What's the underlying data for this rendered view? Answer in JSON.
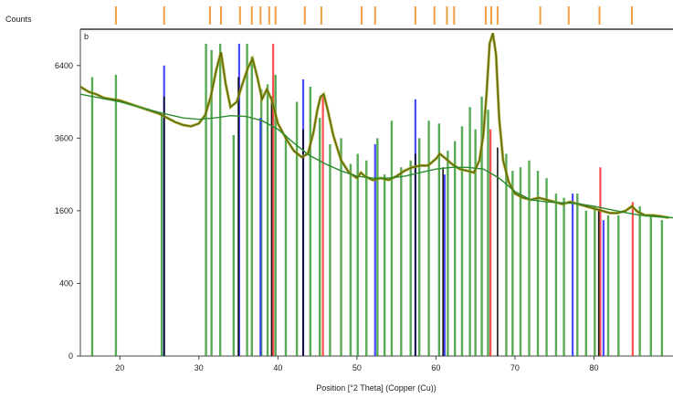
{
  "chart_data": {
    "type": "line",
    "title": "",
    "ylabel": "Counts",
    "xlabel": "Position [°2 Theta] (Copper (Cu))",
    "panel_label": "b",
    "x_range": [
      15,
      90
    ],
    "y_scale": "sqrt",
    "y_ticks": [
      0,
      400,
      1600,
      3600,
      6400
    ],
    "x_ticks": [
      20,
      30,
      40,
      50,
      60,
      70,
      80
    ],
    "grid": false,
    "colors": {
      "observed": "#5a6a00",
      "calculated": "#a8a020",
      "background": "#2e8b2e",
      "green_ref": "#1f8f1f",
      "blue_ref": "#2a2aff",
      "red_ref": "#ff3030",
      "black_ref": "#000000",
      "marker": "#f0a040"
    },
    "series": [
      {
        "kind": "observed",
        "x": [
          15,
          16,
          17,
          18,
          19,
          20,
          21,
          22,
          23,
          24,
          25,
          26,
          27,
          28,
          29,
          30,
          30.8,
          31.5,
          32.2,
          32.8,
          33.4,
          34,
          34.8,
          35.5,
          36.2,
          36.8,
          37.4,
          38,
          38.6,
          39.2,
          40,
          41,
          42,
          43,
          43.8,
          44.5,
          45,
          45.4,
          45.8,
          46.3,
          47,
          48,
          49,
          50,
          50.5,
          51,
          52,
          53,
          54,
          55,
          56,
          57,
          58,
          59,
          60,
          60.5,
          61,
          61.5,
          62,
          63,
          64,
          64.8,
          65.5,
          66,
          66.4,
          66.8,
          67.2,
          67.6,
          68,
          68.5,
          69.2,
          70,
          71,
          72,
          73,
          74,
          75,
          76,
          77,
          78,
          79,
          80,
          81,
          82,
          83,
          84,
          84.8,
          85.5,
          86.5,
          87.5,
          88.5,
          89.5
        ],
        "y": [
          5500,
          5300,
          5200,
          5050,
          5000,
          4950,
          4850,
          4750,
          4650,
          4550,
          4450,
          4300,
          4150,
          4050,
          4000,
          4100,
          4400,
          5100,
          6200,
          7000,
          5600,
          4700,
          4900,
          5600,
          6300,
          6700,
          5900,
          5000,
          5400,
          5000,
          4100,
          3600,
          3200,
          3000,
          3100,
          3800,
          4600,
          5100,
          5200,
          4600,
          3700,
          2900,
          2550,
          2400,
          2550,
          2450,
          2350,
          2400,
          2350,
          2450,
          2600,
          2700,
          2750,
          2750,
          2950,
          3100,
          3000,
          2900,
          2800,
          2650,
          2600,
          2550,
          2900,
          3700,
          5200,
          7400,
          7900,
          6900,
          4300,
          2900,
          2300,
          2000,
          1900,
          1850,
          1900,
          1850,
          1800,
          1750,
          1800,
          1750,
          1700,
          1650,
          1600,
          1550,
          1550,
          1600,
          1700,
          1580,
          1500,
          1500,
          1480,
          1450
        ]
      },
      {
        "kind": "background",
        "x": [
          15,
          20,
          25,
          28,
          30,
          32,
          34,
          36,
          38,
          40,
          42,
          44,
          46,
          48,
          50,
          52,
          54,
          56,
          58,
          60,
          62,
          64,
          66,
          68,
          70,
          72,
          74,
          76,
          78,
          80,
          82,
          84,
          86,
          88,
          90
        ],
        "y": [
          5200,
          4900,
          4500,
          4300,
          4250,
          4300,
          4380,
          4350,
          4200,
          3900,
          3450,
          3050,
          2800,
          2600,
          2450,
          2400,
          2400,
          2450,
          2550,
          2650,
          2700,
          2700,
          2650,
          2400,
          2050,
          1850,
          1800,
          1780,
          1760,
          1700,
          1630,
          1560,
          1500,
          1470,
          1450
        ]
      }
    ],
    "reference_peaks": {
      "green": [
        {
          "x": 16.5,
          "y": 5900
        },
        {
          "x": 19.5,
          "y": 6000
        },
        {
          "x": 25.3,
          "y": 4400
        },
        {
          "x": 30.9,
          "y": 7400
        },
        {
          "x": 31.6,
          "y": 7100
        },
        {
          "x": 32.7,
          "y": 7400
        },
        {
          "x": 34.4,
          "y": 3700
        },
        {
          "x": 36.1,
          "y": 7400
        },
        {
          "x": 36.7,
          "y": 6800
        },
        {
          "x": 37.9,
          "y": 5400
        },
        {
          "x": 38.7,
          "y": 5600
        },
        {
          "x": 39.7,
          "y": 6000
        },
        {
          "x": 41.0,
          "y": 3700
        },
        {
          "x": 42.4,
          "y": 4900
        },
        {
          "x": 44.1,
          "y": 5500
        },
        {
          "x": 45.3,
          "y": 4300
        },
        {
          "x": 46.6,
          "y": 3400
        },
        {
          "x": 48.0,
          "y": 3600
        },
        {
          "x": 49.2,
          "y": 2800
        },
        {
          "x": 50.1,
          "y": 3100
        },
        {
          "x": 51.2,
          "y": 2900
        },
        {
          "x": 52.6,
          "y": 3600
        },
        {
          "x": 53.5,
          "y": 2500
        },
        {
          "x": 54.4,
          "y": 4200
        },
        {
          "x": 55.6,
          "y": 2700
        },
        {
          "x": 56.8,
          "y": 2900
        },
        {
          "x": 57.9,
          "y": 3600
        },
        {
          "x": 59.1,
          "y": 4200
        },
        {
          "x": 60.4,
          "y": 4100
        },
        {
          "x": 61.5,
          "y": 3200
        },
        {
          "x": 62.4,
          "y": 3500
        },
        {
          "x": 63.3,
          "y": 4000
        },
        {
          "x": 64.3,
          "y": 4700
        },
        {
          "x": 65.0,
          "y": 3900
        },
        {
          "x": 65.8,
          "y": 5100
        },
        {
          "x": 66.6,
          "y": 4600
        },
        {
          "x": 68.9,
          "y": 3100
        },
        {
          "x": 69.7,
          "y": 2600
        },
        {
          "x": 70.7,
          "y": 2700
        },
        {
          "x": 71.8,
          "y": 2900
        },
        {
          "x": 72.9,
          "y": 2600
        },
        {
          "x": 74.0,
          "y": 2400
        },
        {
          "x": 75.2,
          "y": 2000
        },
        {
          "x": 76.2,
          "y": 1900
        },
        {
          "x": 77.9,
          "y": 2000
        },
        {
          "x": 79.0,
          "y": 1600
        },
        {
          "x": 80.1,
          "y": 1700
        },
        {
          "x": 81.8,
          "y": 1500
        },
        {
          "x": 83.1,
          "y": 1500
        },
        {
          "x": 85.8,
          "y": 1700
        },
        {
          "x": 87.2,
          "y": 1500
        },
        {
          "x": 88.6,
          "y": 1400
        }
      ],
      "blue": [
        {
          "x": 25.6,
          "y": 6400
        },
        {
          "x": 35.1,
          "y": 7400
        },
        {
          "x": 37.8,
          "y": 4300
        },
        {
          "x": 43.2,
          "y": 5800
        },
        {
          "x": 52.3,
          "y": 3400
        },
        {
          "x": 57.4,
          "y": 5000
        },
        {
          "x": 61.1,
          "y": 2500
        },
        {
          "x": 77.3,
          "y": 2000
        },
        {
          "x": 81.2,
          "y": 1400
        }
      ],
      "red": [
        {
          "x": 39.4,
          "y": 7400
        },
        {
          "x": 45.7,
          "y": 5100
        },
        {
          "x": 66.9,
          "y": 3900
        },
        {
          "x": 80.8,
          "y": 2700
        },
        {
          "x": 84.9,
          "y": 1800
        }
      ],
      "black": [
        {
          "x": 25.6,
          "y": 5100
        },
        {
          "x": 35.0,
          "y": 5900
        },
        {
          "x": 39.2,
          "y": 5100
        },
        {
          "x": 43.2,
          "y": 3900
        },
        {
          "x": 57.4,
          "y": 3100
        },
        {
          "x": 60.9,
          "y": 2700
        },
        {
          "x": 67.8,
          "y": 3300
        },
        {
          "x": 80.6,
          "y": 1600
        }
      ]
    },
    "top_markers": [
      19.5,
      25.6,
      31.4,
      32.8,
      35.2,
      36.7,
      37.8,
      38.9,
      39.7,
      43.4,
      45.5,
      50.6,
      52.3,
      57.4,
      59.8,
      61.4,
      62.3,
      66.3,
      67.0,
      67.8,
      73.2,
      76.8,
      80.7,
      84.8
    ]
  }
}
